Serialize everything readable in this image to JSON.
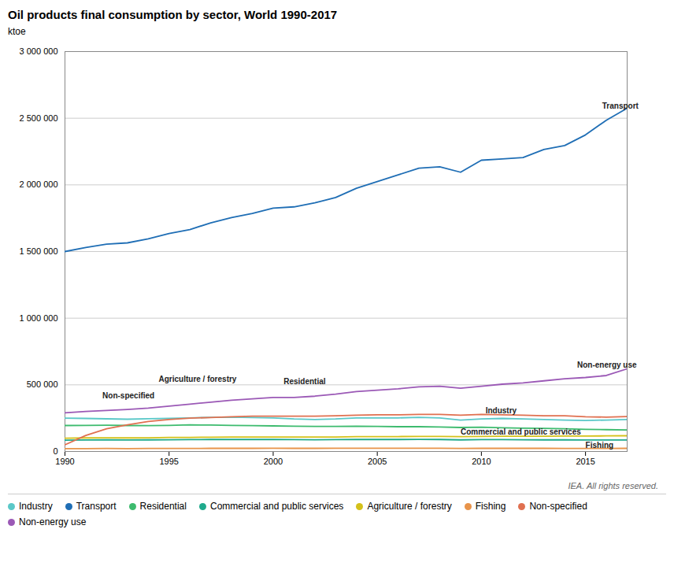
{
  "chart_data": {
    "type": "line",
    "title": "Oil products final consumption by sector, World 1990-2017",
    "ylabel": "ktoe",
    "x": [
      1990,
      1991,
      1992,
      1993,
      1994,
      1995,
      1996,
      1997,
      1998,
      1999,
      2000,
      2001,
      2002,
      2003,
      2004,
      2005,
      2006,
      2007,
      2008,
      2009,
      2010,
      2011,
      2012,
      2013,
      2014,
      2015,
      2016,
      2017
    ],
    "series": [
      {
        "name": "Industry",
        "color": "#5bc8c8",
        "values": [
          250000,
          248000,
          245000,
          242000,
          246000,
          248000,
          252000,
          256000,
          258000,
          255000,
          252000,
          244000,
          240000,
          244000,
          252000,
          252000,
          252000,
          256000,
          252000,
          236000,
          244000,
          248000,
          244000,
          240000,
          236000,
          232000,
          236000,
          240000
        ]
      },
      {
        "name": "Transport",
        "color": "#1f6eb5",
        "values": [
          1500000,
          1530000,
          1555000,
          1565000,
          1595000,
          1635000,
          1665000,
          1715000,
          1755000,
          1785000,
          1825000,
          1835000,
          1865000,
          1905000,
          1975000,
          2025000,
          2075000,
          2125000,
          2135000,
          2095000,
          2185000,
          2195000,
          2205000,
          2265000,
          2295000,
          2375000,
          2485000,
          2575000
        ]
      },
      {
        "name": "Residential",
        "color": "#3dbb6e",
        "values": [
          195000,
          196000,
          197000,
          195000,
          194000,
          196000,
          200000,
          198000,
          196000,
          194000,
          192000,
          190000,
          188000,
          188000,
          189000,
          188000,
          186000,
          186000,
          184000,
          180000,
          182000,
          178000,
          175000,
          173000,
          170000,
          166000,
          164000,
          162000
        ]
      },
      {
        "name": "Commercial and public services",
        "color": "#1faa8c",
        "values": [
          85000,
          86000,
          87000,
          86000,
          87000,
          88000,
          89000,
          90000,
          90000,
          90000,
          90000,
          89000,
          88000,
          89000,
          90000,
          90000,
          90000,
          91000,
          90000,
          87000,
          89000,
          89000,
          88000,
          87000,
          87000,
          86000,
          86000,
          86000
        ]
      },
      {
        "name": "Agriculture / forestry",
        "color": "#d4c11a",
        "values": [
          100000,
          102000,
          103000,
          102000,
          103000,
          105000,
          106000,
          107000,
          108000,
          108000,
          109000,
          108000,
          108000,
          109000,
          111000,
          112000,
          112000,
          113000,
          113000,
          111000,
          113000,
          114000,
          115000,
          115000,
          116000,
          116000,
          117000,
          118000
        ]
      },
      {
        "name": "Fishing",
        "color": "#e8944a",
        "values": [
          22000,
          22000,
          22500,
          22000,
          22500,
          23000,
          23000,
          23500,
          23500,
          23500,
          24000,
          23500,
          23500,
          24000,
          24000,
          24500,
          24500,
          24500,
          24000,
          23000,
          23500,
          23500,
          23500,
          23500,
          23000,
          23000,
          23000,
          23500
        ]
      },
      {
        "name": "Non-specified",
        "color": "#e07050",
        "values": [
          50000,
          120000,
          170000,
          200000,
          225000,
          240000,
          250000,
          255000,
          260000,
          265000,
          265000,
          265000,
          265000,
          268000,
          272000,
          275000,
          275000,
          278000,
          278000,
          272000,
          278000,
          275000,
          272000,
          268000,
          268000,
          260000,
          258000,
          262000
        ]
      },
      {
        "name": "Non-energy use",
        "color": "#9b59b6",
        "values": [
          290000,
          300000,
          308000,
          315000,
          325000,
          340000,
          355000,
          370000,
          385000,
          395000,
          405000,
          405000,
          415000,
          430000,
          450000,
          460000,
          470000,
          485000,
          490000,
          475000,
          490000,
          505000,
          515000,
          530000,
          545000,
          555000,
          570000,
          620000
        ]
      }
    ],
    "xlim": [
      1990,
      2017
    ],
    "xticks": [
      1990,
      1995,
      2000,
      2005,
      2010,
      2015
    ],
    "ylim": [
      0,
      3000000
    ],
    "yticks": [
      0,
      {
        "value": 500000,
        "label": "500 000"
      },
      {
        "value": 1000000,
        "label": "1 000 000"
      },
      {
        "value": 1500000,
        "label": "1 500 000"
      },
      {
        "value": 2000000,
        "label": "2 000 000"
      },
      {
        "value": 2500000,
        "label": "2 500 000"
      },
      {
        "value": 3000000,
        "label": "3 000 000"
      }
    ],
    "grid": "y",
    "legend": "bottom",
    "annotations": [
      {
        "text": "Transport",
        "x": 2015.8,
        "y": 2590000
      },
      {
        "text": "Non-energy use",
        "x": 2014.6,
        "y": 650000
      },
      {
        "text": "Non-specified",
        "x": 1991.8,
        "y": 420000
      },
      {
        "text": "Industry",
        "x": 2010.2,
        "y": 303000
      },
      {
        "text": "Residential",
        "x": 2000.5,
        "y": 523000
      },
      {
        "text": "Commercial and public services",
        "x": 2009.0,
        "y": 145000
      },
      {
        "text": "Agriculture / forestry",
        "x": 1994.5,
        "y": 540000
      },
      {
        "text": "Fishing",
        "x": 2015.0,
        "y": 48000
      },
      {
        "text": "IEA. All rights reserved."
      }
    ]
  }
}
